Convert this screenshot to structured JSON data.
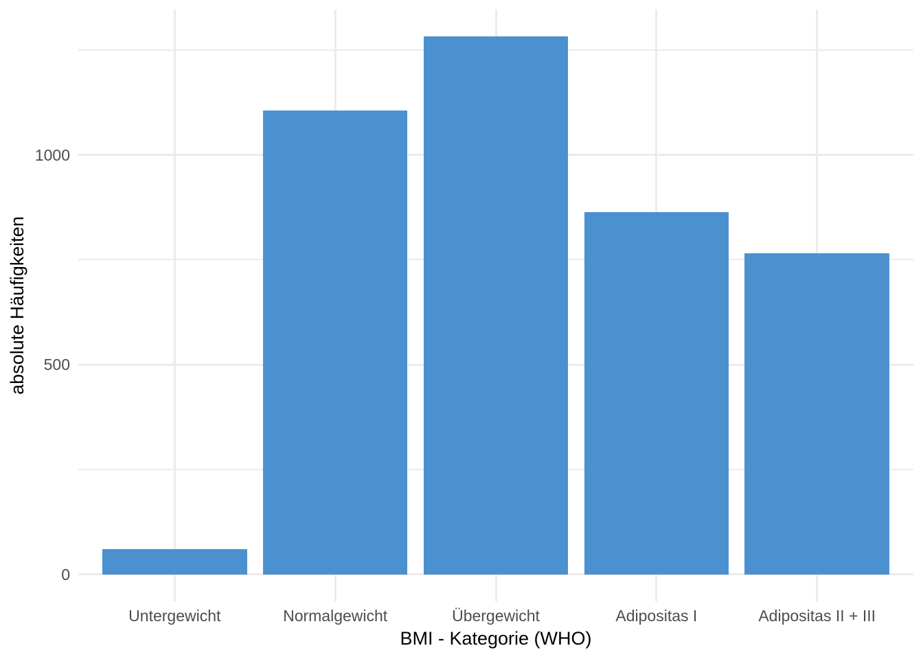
{
  "figure": {
    "background": "#FFFFFF"
  },
  "chart_data": {
    "type": "bar",
    "title": "",
    "categories": [
      "Untergewicht",
      "Normalgewicht",
      "Übergewicht",
      "Adipositas I",
      "Adipositas II + III"
    ],
    "values": [
      60,
      1106,
      1282,
      863,
      765
    ],
    "xlabel": "BMI - Kategorie (WHO)",
    "ylabel": "absolute Häufigkeiten",
    "ylim": [
      0,
      1346
    ],
    "yticks": [
      0,
      500,
      1000
    ],
    "ytick_labels": [
      "0",
      "500",
      "1000"
    ],
    "yminor_ticks": [
      250,
      750,
      1250
    ],
    "grid": true,
    "legend_position": "none",
    "bar_width_fraction": 0.9,
    "colors": {
      "bar_fill": "#4B91CF",
      "gridline": "#EBEBEB",
      "tick_label": "#4D4D4D",
      "axis_title": "#000000",
      "background": "#FFFFFF"
    }
  }
}
